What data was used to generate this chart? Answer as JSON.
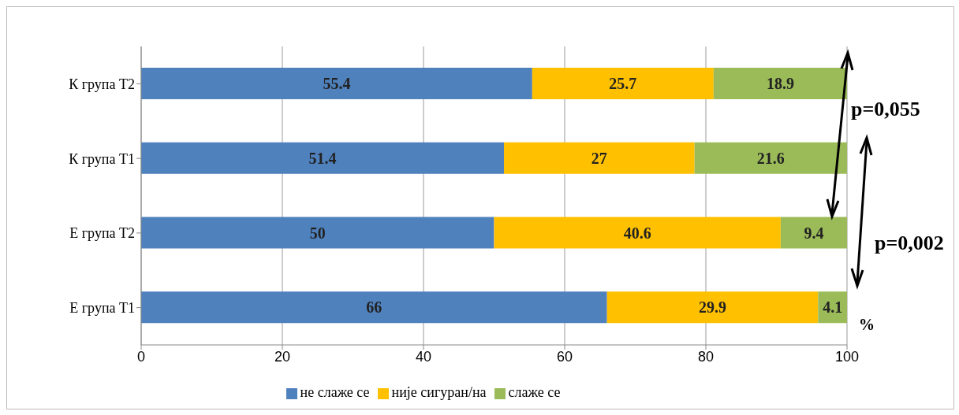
{
  "chart_data": {
    "type": "bar",
    "orientation": "horizontal",
    "stacked": true,
    "categories": [
      "К група Т2",
      "К група Т1",
      "Е група Т2",
      "Е група Т1"
    ],
    "series": [
      {
        "name": "не слаже се",
        "color": "#4f81bd",
        "values": [
          55.4,
          51.4,
          50,
          66
        ]
      },
      {
        "name": "није сигуран/на",
        "color": "#ffc000",
        "values": [
          25.7,
          27,
          40.6,
          29.9
        ]
      },
      {
        "name": "слаже се",
        "color": "#9bbb59",
        "values": [
          18.9,
          21.6,
          9.4,
          4.1
        ]
      }
    ],
    "xlim": [
      0,
      100
    ],
    "xticks": [
      0,
      20,
      40,
      60,
      80,
      100
    ],
    "xlabel": "%",
    "grid": "x",
    "legend": "bottom",
    "data_labels": true,
    "annotations": [
      "p=0,055",
      "p=0,002"
    ]
  }
}
